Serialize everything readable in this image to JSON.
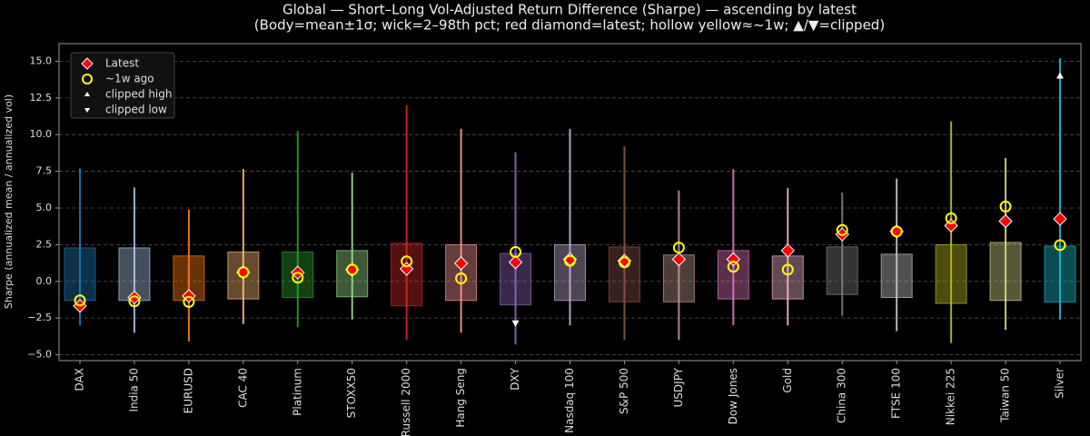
{
  "chart_data": {
    "type": "range",
    "title": "Global — Short–Long Vol-Adjusted Return Difference (Sharpe) — ascending by latest",
    "subtitle": "(Body=mean±1σ; wick=2–98th pct; red diamond=latest; hollow yellow≈~1w; ▲/▼=clipped)",
    "ylabel": "Sharpe (annualized mean / annualized vol)",
    "categories": [
      "DAX",
      "India 50",
      "EURUSD",
      "CAC 40",
      "Platinum",
      "STOXX50",
      "Russell 2000",
      "Hang Seng",
      "DXY",
      "Nasdaq 100",
      "S&P 500",
      "USDJPY",
      "Dow Jones",
      "Gold",
      "China 300",
      "FTSE 100",
      "Nikkei 225",
      "Taiwan 50",
      "Silver"
    ],
    "colors": [
      "#1f77b4",
      "#aec7e8",
      "#ff7f0e",
      "#ffbb78",
      "#2ca02c",
      "#98df8a",
      "#d62728",
      "#ff9896",
      "#9467bd",
      "#c5b0d5",
      "#8c564b",
      "#c49c94",
      "#e377c2",
      "#f7b6d2",
      "#7f7f7f",
      "#c7c7c7",
      "#bcbd22",
      "#dbdb8d",
      "#17becf"
    ],
    "body_low": [
      -1.3,
      -1.3,
      -1.3,
      -1.2,
      -1.1,
      -1.05,
      -1.67,
      -1.3,
      -1.6,
      -1.3,
      -1.4,
      -1.4,
      -1.2,
      -1.2,
      -0.9,
      -1.1,
      -1.5,
      -1.3,
      -1.4
    ],
    "body_high": [
      2.28,
      2.28,
      1.73,
      2.0,
      2.0,
      2.1,
      2.6,
      2.5,
      1.9,
      2.5,
      2.35,
      1.8,
      2.1,
      1.73,
      2.35,
      1.85,
      2.5,
      2.65,
      2.4
    ],
    "wick_low": [
      -3.0,
      -3.5,
      -4.1,
      -2.9,
      -3.1,
      -2.6,
      -4.0,
      -3.5,
      -4.3,
      -3.0,
      -4.0,
      -4.0,
      -3.0,
      -3.0,
      -2.35,
      -3.4,
      -4.2,
      -3.3,
      -2.6
    ],
    "wick_high": [
      7.7,
      6.4,
      4.9,
      7.65,
      10.25,
      7.4,
      12.0,
      10.4,
      8.8,
      10.4,
      9.2,
      6.2,
      7.65,
      6.35,
      6.05,
      7.0,
      10.9,
      8.4,
      15.2
    ],
    "latest": {
      "name": "Latest",
      "color": "#ff0000",
      "values": [
        -1.67,
        -1.1,
        -1.0,
        0.62,
        0.6,
        0.8,
        0.85,
        1.23,
        1.3,
        1.5,
        1.4,
        1.5,
        1.5,
        2.1,
        3.2,
        3.4,
        3.8,
        4.1,
        4.25
      ]
    },
    "week_ago": {
      "name": "~1w ago",
      "color": "#ffff00",
      "values": [
        -1.3,
        -1.36,
        -1.4,
        0.62,
        0.25,
        0.8,
        1.36,
        0.2,
        2.0,
        1.4,
        1.3,
        2.3,
        1.0,
        0.8,
        3.5,
        3.4,
        4.3,
        5.1,
        2.47
      ]
    },
    "clipped_high": {
      "name": "clipped high",
      "color": "#ffffff",
      "values": [
        null,
        null,
        null,
        null,
        null,
        null,
        null,
        null,
        null,
        null,
        null,
        null,
        null,
        null,
        null,
        null,
        null,
        null,
        14.0
      ]
    },
    "clipped_low": {
      "name": "clipped low",
      "color": "#ffffff",
      "values": [
        null,
        null,
        null,
        null,
        null,
        null,
        null,
        null,
        -2.85,
        null,
        null,
        null,
        null,
        null,
        null,
        null,
        null,
        null,
        null
      ]
    },
    "ylim": [
      -5.4,
      16.2
    ],
    "yticks": [
      {
        "value": -5,
        "label": "−5.0"
      },
      {
        "value": -2.5,
        "label": "−2.5"
      },
      {
        "value": 0,
        "label": "0.0"
      },
      {
        "value": 2.5,
        "label": "2.5"
      },
      {
        "value": 5,
        "label": "5.0"
      },
      {
        "value": 7.5,
        "label": "7.5"
      },
      {
        "value": 10,
        "label": "10.0"
      },
      {
        "value": 12.5,
        "label": "12.5"
      },
      {
        "value": 15,
        "label": "15.0"
      }
    ],
    "grid": true
  }
}
